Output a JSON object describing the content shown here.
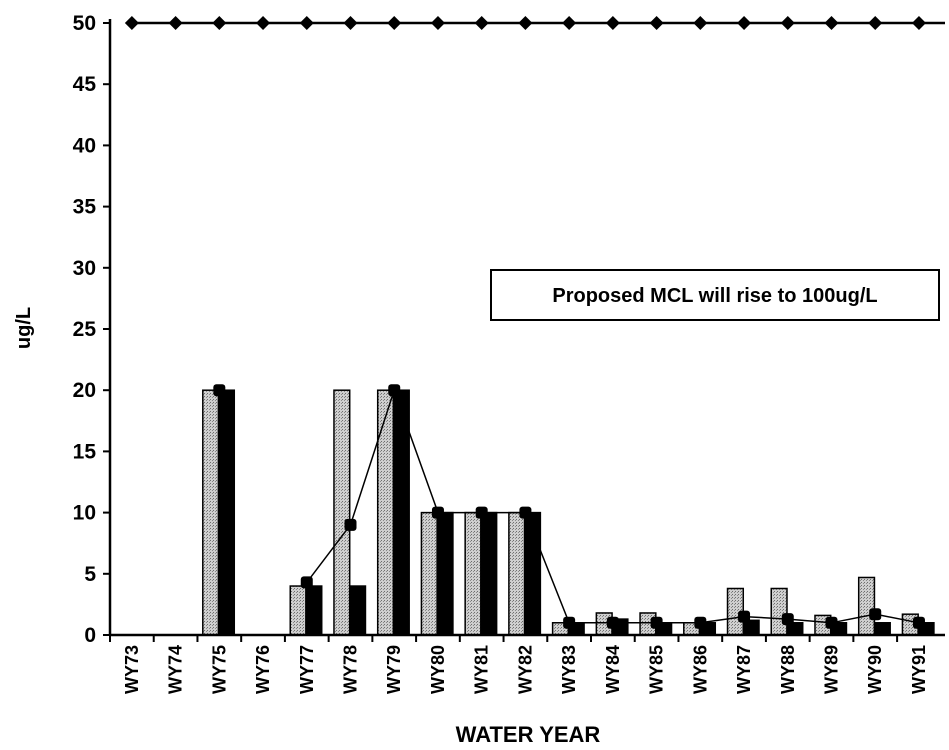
{
  "chart_data": {
    "type": "bar",
    "title": "",
    "xlabel": "WATER YEAR",
    "ylabel": "ug/L",
    "ylim": [
      0,
      50
    ],
    "yticks": [
      0,
      5,
      10,
      15,
      20,
      25,
      30,
      35,
      40,
      45,
      50
    ],
    "grid": false,
    "categories": [
      "WY73",
      "WY74",
      "WY75",
      "WY76",
      "WY77",
      "WY78",
      "WY79",
      "WY80",
      "WY81",
      "WY82",
      "WY83",
      "WY84",
      "WY85",
      "WY86",
      "WY87",
      "WY88",
      "WY89",
      "WY90",
      "WY91"
    ],
    "series": [
      {
        "kind": "bar",
        "color": "#c4c4c4",
        "values": [
          0,
          0,
          20,
          0,
          4,
          20,
          20,
          10,
          10,
          10,
          1,
          1.8,
          1.8,
          1,
          3.8,
          3.8,
          1.6,
          4.7,
          1.7
        ]
      },
      {
        "kind": "bar",
        "color": "#000000",
        "values": [
          0,
          0,
          20,
          0,
          4,
          4,
          20,
          10,
          10,
          10,
          1,
          1.3,
          1,
          1,
          1.2,
          1,
          1,
          1,
          1
        ]
      },
      {
        "kind": "line",
        "color": "#000000",
        "values": [
          null,
          null,
          20,
          null,
          4.3,
          9,
          20,
          10,
          10,
          10,
          1,
          1,
          1,
          1,
          1.5,
          1.3,
          1,
          1.7,
          1
        ]
      },
      {
        "kind": "line",
        "color": "#000000",
        "marker": "diamond",
        "values": [
          50,
          50,
          50,
          50,
          50,
          50,
          50,
          50,
          50,
          50,
          50,
          50,
          50,
          50,
          50,
          50,
          50,
          50,
          50
        ]
      }
    ],
    "annotations": [
      "Proposed MCL will rise to 100ug/L"
    ]
  }
}
